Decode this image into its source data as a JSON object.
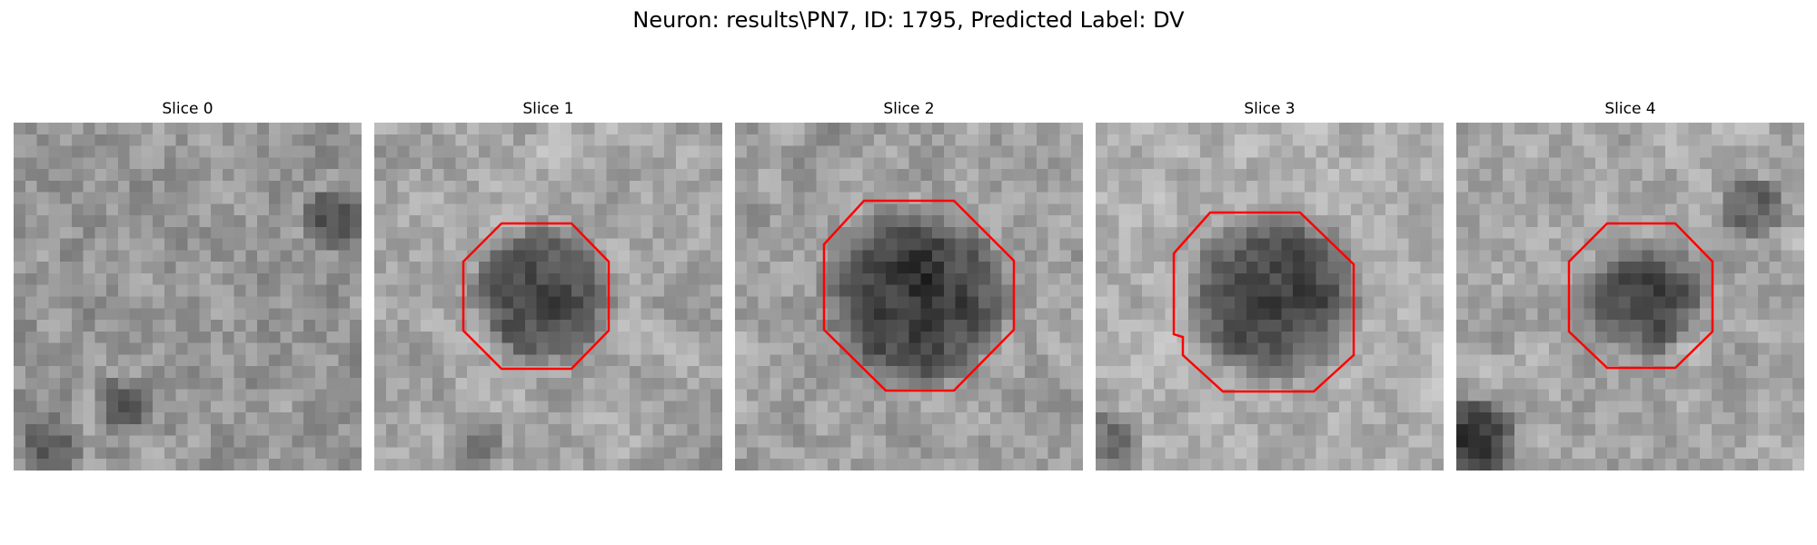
{
  "figure": {
    "title": "Neuron: results\\PN7, ID: 1795, Predicted Label: DV"
  },
  "slices": [
    {
      "title": "Slice 0",
      "roi_visible": false
    },
    {
      "title": "Slice 1",
      "roi_visible": true
    },
    {
      "title": "Slice 2",
      "roi_visible": true
    },
    {
      "title": "Slice 3",
      "roi_visible": true
    },
    {
      "title": "Slice 4",
      "roi_visible": true
    }
  ],
  "colors": {
    "roi_outline": "#ff0000",
    "background": "#ffffff"
  },
  "colormap": "gray"
}
